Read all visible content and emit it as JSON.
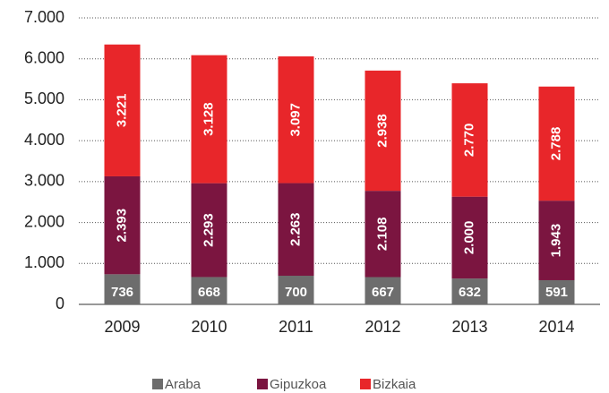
{
  "chart_data": {
    "type": "stacked_bar",
    "categories": [
      "2009",
      "2010",
      "2011",
      "2012",
      "2013",
      "2014"
    ],
    "series": [
      {
        "name": "Araba",
        "color": "#6d6d6d",
        "values": [
          736,
          668,
          700,
          667,
          632,
          591
        ],
        "value_labels": [
          "736",
          "668",
          "700",
          "667",
          "632",
          "591"
        ]
      },
      {
        "name": "Gipuzkoa",
        "color": "#7b1540",
        "values": [
          2393,
          2293,
          2263,
          2108,
          2000,
          1943
        ],
        "value_labels": [
          "2.393",
          "2.293",
          "2.263",
          "2.108",
          "2.000",
          "1.943"
        ]
      },
      {
        "name": "Bizkaia",
        "color": "#e8262a",
        "values": [
          3221,
          3128,
          3097,
          2938,
          2770,
          2788
        ],
        "value_labels": [
          "3.221",
          "3.128",
          "3.097",
          "2.938",
          "2.770",
          "2.788"
        ]
      }
    ],
    "ylim": [
      0,
      7000
    ],
    "yticks": [
      0,
      {
        "value": 1000,
        "label": "1.000"
      },
      {
        "value": 2000,
        "label": "2.000"
      },
      {
        "value": 3000,
        "label": "3.000"
      },
      {
        "value": 4000,
        "label": "4.000"
      },
      {
        "value": 5000,
        "label": "5.000"
      },
      {
        "value": 6000,
        "label": "6.000"
      },
      {
        "value": 7000,
        "label": "7.000"
      }
    ],
    "grid": true,
    "legend": "bottom"
  }
}
